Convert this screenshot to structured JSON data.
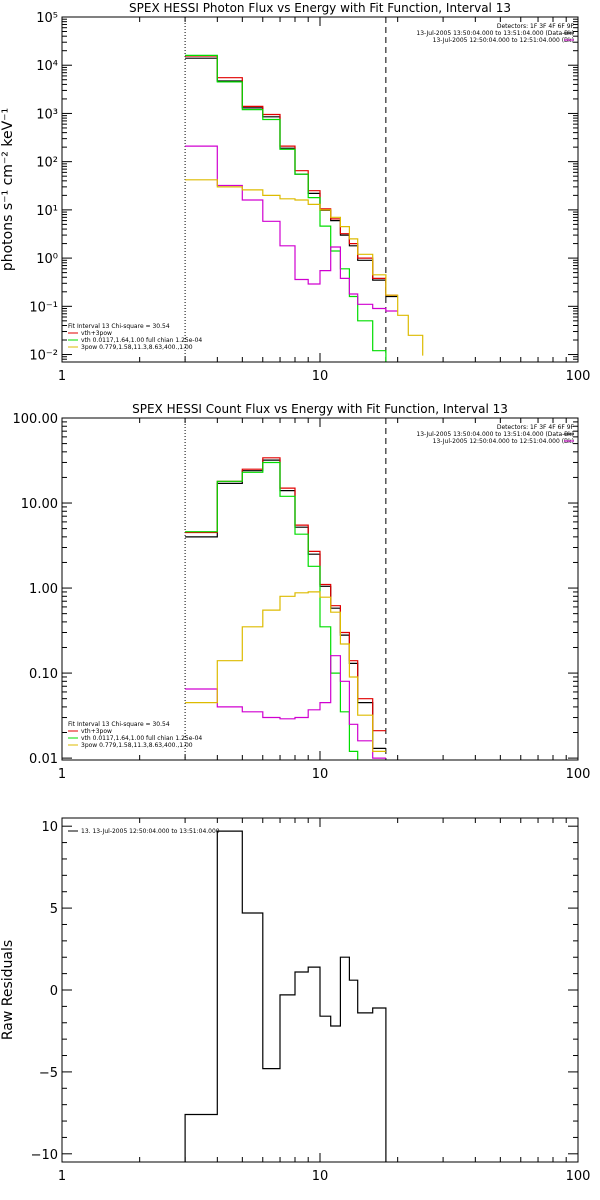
{
  "colors": {
    "data": "#000000",
    "model": "#e00000",
    "bk": "#d000d0",
    "vth": "#00dd00",
    "nth": "#ddbb00"
  },
  "chart_data": [
    {
      "type": "line",
      "title": "SPEX HESSI Photon Flux vs Energy with Fit Function, Interval 13",
      "ylabel": "photons s⁻¹ cm⁻² keV⁻¹",
      "xlim": [
        1,
        100
      ],
      "ylim": [
        0.007,
        100000
      ],
      "xscale": "log",
      "yscale": "log",
      "xticks": [
        {
          "v": 1,
          "l": "1"
        },
        {
          "v": 10,
          "l": "10"
        },
        {
          "v": 100,
          "l": "100"
        }
      ],
      "yticks": [
        {
          "v": 0.01,
          "l": "10⁻²"
        },
        {
          "v": 0.1,
          "l": "10⁻¹"
        },
        {
          "v": 1,
          "l": "10⁰"
        },
        {
          "v": 10,
          "l": "10¹"
        },
        {
          "v": 100,
          "l": "10²"
        },
        {
          "v": 1000,
          "l": "10³"
        },
        {
          "v": 10000,
          "l": "10⁴"
        },
        {
          "v": 100000,
          "l": "10⁵"
        }
      ],
      "vlines": [
        {
          "x": 3.0,
          "style": "dotted"
        },
        {
          "x": 18.0,
          "style": "dashed"
        }
      ],
      "detinfo": [
        "Detectors: 1F 3F 4F 6F 9F",
        "13-Jul-2005 13:50:04.000 to 13:51:04.000 (Data-Bk)",
        "13-Jul-2005 12:50:04.000 to 12:51:04.000 (Bk)"
      ],
      "legend": [
        {
          "label": "Fit Interval 13   Chi-square = 30.54",
          "color": ""
        },
        {
          "label": "vth+3pow",
          "color": "model"
        },
        {
          "label": "vth 0.0117,1.64,1.00  full chian 1.25e-04",
          "color": "vth"
        },
        {
          "label": "3pow 0.779,1.58,11.3,8.63,400.,1.00",
          "color": "nth"
        }
      ],
      "edges": [
        3.0,
        4.0,
        5.0,
        6.0,
        7.0,
        8.0,
        9.0,
        10.0,
        11.0,
        12.0,
        13.0,
        14.0,
        16.0,
        18.0,
        20.0,
        22.0,
        25.0
      ],
      "series": [
        {
          "name": "",
          "color": "data",
          "values": [
            14000,
            4700,
            1300,
            850,
            190,
            55,
            22,
            9.8,
            6,
            3,
            1.8,
            0.9,
            0.35,
            0.16
          ],
          "start": 0
        },
        {
          "name": "vth+3pow",
          "color": "model",
          "values": [
            15500,
            5500,
            1400,
            950,
            210,
            65,
            25,
            10.5,
            6.5,
            3.2,
            2.0,
            1.0,
            0.38,
            0.17
          ],
          "start": 0
        },
        {
          "name": "vth",
          "color": "vth",
          "values": [
            16000,
            4500,
            1200,
            750,
            180,
            55,
            18,
            4.6,
            1.4,
            0.6,
            0.16,
            0.05,
            0.012,
            0.006
          ],
          "start": 0
        },
        {
          "name": "bk",
          "color": "bk",
          "values": [
            210,
            32,
            16,
            5.8,
            1.8,
            0.36,
            0.29,
            0.55,
            1.7,
            0.38,
            0.18,
            0.11,
            0.09,
            0.08
          ],
          "start": 0
        },
        {
          "name": "3pow",
          "color": "nth",
          "values": [
            42,
            30,
            26,
            20,
            17,
            16,
            13,
            10,
            7,
            4.5,
            2.5,
            1.2,
            0.45,
            0.17,
            0.065,
            0.025,
            0.0095
          ],
          "start": 0
        }
      ]
    },
    {
      "type": "line",
      "title": "SPEX HESSI Count Flux vs Energy with Fit Function, Interval 13",
      "ylabel": "",
      "xlim": [
        1,
        100
      ],
      "ylim": [
        0.0095,
        100
      ],
      "xscale": "log",
      "yscale": "log",
      "xticks": [
        {
          "v": 1,
          "l": "1"
        },
        {
          "v": 10,
          "l": "10"
        },
        {
          "v": 100,
          "l": "100"
        }
      ],
      "yticks": [
        {
          "v": 0.01,
          "l": "0.01"
        },
        {
          "v": 0.1,
          "l": "0.10"
        },
        {
          "v": 1,
          "l": "1.00"
        },
        {
          "v": 10,
          "l": "10.00"
        },
        {
          "v": 100,
          "l": "100.00"
        }
      ],
      "vlines": [
        {
          "x": 3.0,
          "style": "dotted"
        },
        {
          "x": 18.0,
          "style": "dashed"
        }
      ],
      "detinfo": [
        "Detectors: 1F 3F 4F 6F 9F",
        "13-Jul-2005 13:50:04.000 to 13:51:04.000 (Data-Bk)",
        "13-Jul-2005 12:50:04.000 to 12:51:04.000 (Bk)"
      ],
      "legend": [
        {
          "label": "Fit Interval 13   Chi-square = 30.54",
          "color": ""
        },
        {
          "label": "vth+3pow",
          "color": "model"
        },
        {
          "label": "vth 0.0117,1.64,1.00  full chian 1.25e-04",
          "color": "vth"
        },
        {
          "label": "3pow 0.779,1.58,11.3,8.63,400.,1.00",
          "color": "nth"
        }
      ],
      "edges": [
        3.0,
        4.0,
        5.0,
        6.0,
        7.0,
        8.0,
        9.0,
        10.0,
        11.0,
        12.0,
        13.0,
        14.0,
        16.0,
        18.0
      ],
      "series": [
        {
          "name": "",
          "color": "data",
          "values": [
            4.0,
            17,
            24,
            32,
            14,
            5.2,
            2.5,
            1.05,
            0.58,
            0.28,
            0.13,
            0.045,
            0.013
          ],
          "start": 0
        },
        {
          "name": "vth+3pow",
          "color": "model",
          "values": [
            4.5,
            18,
            25,
            34,
            15,
            5.5,
            2.7,
            1.1,
            0.62,
            0.3,
            0.14,
            0.05,
            0.021
          ],
          "start": 0
        },
        {
          "name": "vth",
          "color": "vth",
          "values": [
            4.6,
            18,
            23,
            30,
            12,
            4.3,
            1.8,
            0.35,
            0.1,
            0.035,
            0.012,
            0.008,
            0.008
          ],
          "start": 0
        },
        {
          "name": "bk",
          "color": "bk",
          "values": [
            0.065,
            0.04,
            0.035,
            0.03,
            0.029,
            0.03,
            0.037,
            0.045,
            0.16,
            0.08,
            0.025,
            0.016,
            0.01
          ],
          "start": 0
        },
        {
          "name": "3pow",
          "color": "nth",
          "values": [
            0.045,
            0.14,
            0.35,
            0.55,
            0.8,
            0.88,
            0.9,
            0.78,
            0.52,
            0.22,
            0.09,
            0.032,
            0.012
          ],
          "start": 0
        }
      ]
    },
    {
      "type": "line",
      "title": "",
      "ylabel": "Raw Residuals",
      "xlim": [
        1,
        100
      ],
      "ylim": [
        -10.5,
        10.5
      ],
      "xscale": "log",
      "yscale": "linear",
      "xticks": [
        {
          "v": 1,
          "l": "1"
        },
        {
          "v": 10,
          "l": "10"
        },
        {
          "v": 100,
          "l": "100"
        }
      ],
      "yticks": [
        {
          "v": -10,
          "l": "−10"
        },
        {
          "v": -5,
          "l": "−5"
        },
        {
          "v": 0,
          "l": "0"
        },
        {
          "v": 5,
          "l": "5"
        },
        {
          "v": 10,
          "l": "10"
        }
      ],
      "vlines": [],
      "detinfo": [],
      "legend": [
        {
          "label": "13. 13-Jul-2005 12:50:04.000 to 13:51:04.000",
          "color": "data"
        }
      ],
      "edges": [
        3.0,
        4.0,
        5.0,
        6.0,
        7.0,
        8.0,
        9.0,
        10.0,
        11.0,
        12.0,
        13.0,
        14.0,
        16.0,
        18.0
      ],
      "series": [
        {
          "name": "",
          "color": "data",
          "values": [
            -7.6,
            9.7,
            4.7,
            -4.8,
            -0.3,
            1.1,
            1.4,
            -1.6,
            -2.2,
            2.0,
            0.6,
            -1.4,
            -1.1
          ],
          "start": 0,
          "dropToMin": true
        }
      ]
    }
  ]
}
